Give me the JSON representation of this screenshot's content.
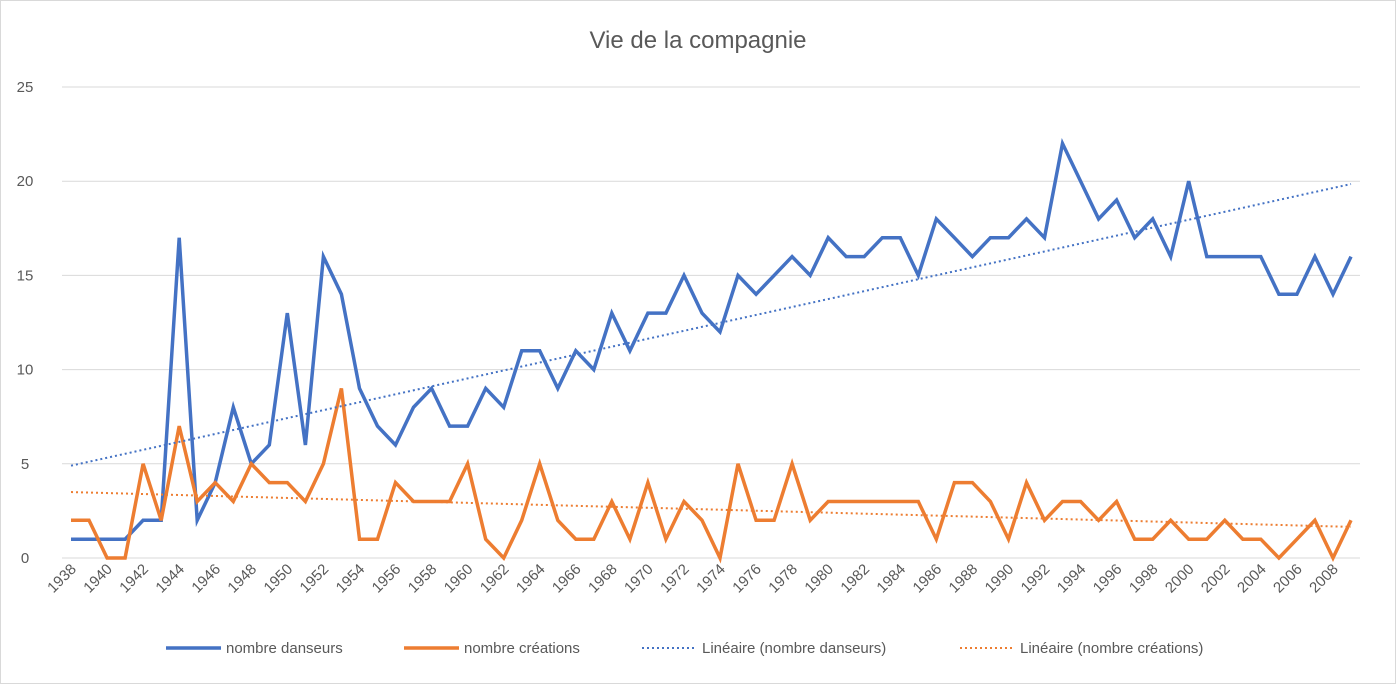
{
  "chart_data": {
    "type": "line",
    "title": "Vie de la compagnie",
    "xlabel": "",
    "ylabel": "",
    "ylim": [
      0,
      25
    ],
    "yticks": [
      0,
      5,
      10,
      15,
      20,
      25
    ],
    "grid": true,
    "legend_position": "bottom",
    "x": [
      1938,
      1939,
      1940,
      1941,
      1942,
      1943,
      1944,
      1945,
      1946,
      1947,
      1948,
      1949,
      1950,
      1951,
      1952,
      1953,
      1954,
      1955,
      1956,
      1957,
      1958,
      1959,
      1960,
      1961,
      1962,
      1963,
      1964,
      1965,
      1966,
      1967,
      1968,
      1969,
      1970,
      1971,
      1972,
      1973,
      1974,
      1975,
      1976,
      1977,
      1978,
      1979,
      1980,
      1981,
      1982,
      1983,
      1984,
      1985,
      1986,
      1987,
      1988,
      1989,
      1990,
      1991,
      1992,
      1993,
      1994,
      1995,
      1996,
      1997,
      1998,
      1999,
      2000,
      2001,
      2002,
      2003,
      2004,
      2005,
      2006,
      2007,
      2008,
      2009
    ],
    "x_tick_labels": [
      "1938",
      "1940",
      "1942",
      "1944",
      "1946",
      "1948",
      "1950",
      "1952",
      "1954",
      "1956",
      "1958",
      "1960",
      "1962",
      "1964",
      "1966",
      "1968",
      "1970",
      "1972",
      "1974",
      "1976",
      "1978",
      "1980",
      "1982",
      "1984",
      "1986",
      "1988",
      "1990",
      "1992",
      "1994",
      "1996",
      "1998",
      "2000",
      "2002",
      "2004",
      "2006",
      "2008"
    ],
    "series": [
      {
        "name": "nombre danseurs",
        "color": "#4472c4",
        "style": "solid",
        "values": [
          1,
          1,
          1,
          1,
          2,
          2,
          17,
          2,
          4,
          8,
          5,
          6,
          13,
          6,
          16,
          14,
          9,
          7,
          6,
          8,
          9,
          7,
          7,
          9,
          8,
          11,
          11,
          9,
          11,
          10,
          13,
          11,
          13,
          13,
          15,
          13,
          12,
          15,
          14,
          15,
          16,
          15,
          17,
          16,
          16,
          17,
          17,
          15,
          18,
          17,
          16,
          17,
          17,
          18,
          17,
          22,
          20,
          18,
          19,
          17,
          18,
          16,
          20,
          16,
          16,
          16,
          16,
          14,
          14,
          16,
          14,
          16
        ]
      },
      {
        "name": "nombre créations",
        "color": "#ed7d31",
        "style": "solid",
        "values": [
          2,
          2,
          0,
          0,
          5,
          2,
          7,
          3,
          4,
          3,
          5,
          4,
          4,
          3,
          5,
          9,
          1,
          1,
          4,
          3,
          3,
          3,
          5,
          1,
          0,
          2,
          5,
          2,
          1,
          1,
          3,
          1,
          4,
          1,
          3,
          2,
          0,
          5,
          2,
          2,
          5,
          2,
          3,
          3,
          3,
          3,
          3,
          3,
          1,
          4,
          4,
          3,
          1,
          4,
          2,
          3,
          3,
          2,
          3,
          1,
          1,
          2,
          1,
          1,
          2,
          1,
          1,
          0,
          1,
          2,
          0,
          2
        ]
      },
      {
        "name": "Linéaire  (nombre danseurs)",
        "color": "#4472c4",
        "style": "dotted",
        "trend": [
          4.9,
          19.85
        ]
      },
      {
        "name": "Linéaire  (nombre créations)",
        "color": "#ed7d31",
        "style": "dotted",
        "trend": [
          3.5,
          1.65
        ]
      }
    ]
  }
}
